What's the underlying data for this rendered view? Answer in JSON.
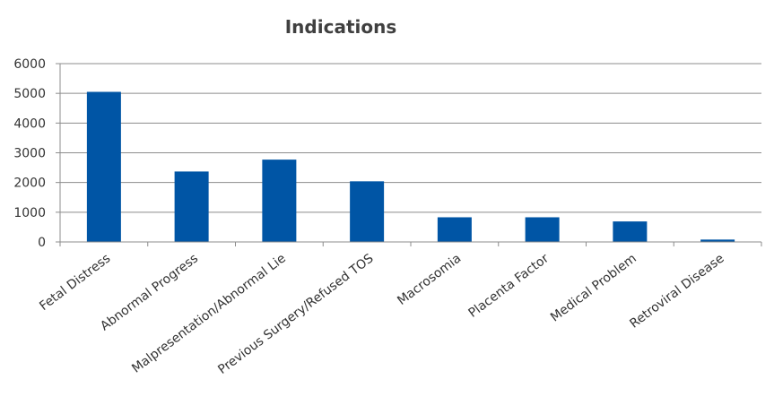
{
  "chart_data": {
    "type": "bar",
    "title": "Indications",
    "categories": [
      "Fetal Distress",
      "Abnormal Progress",
      "Malpresentation/Abnormal Lie",
      "Previous Surgery/Refused TOS",
      "Macrosomia",
      "Placenta Factor",
      "Medical Problem",
      "Retroviral Disease"
    ],
    "values": [
      5050,
      2370,
      2770,
      2040,
      830,
      830,
      690,
      80
    ],
    "yticks": [
      "0",
      "1000",
      "2000",
      "3000",
      "4000",
      "5000",
      "6000"
    ],
    "ylim": [
      0,
      6000
    ],
    "grid": true,
    "legend": "none",
    "colors": {
      "bar": "#0055a5",
      "grid": "#8c8c8c",
      "text": "#333333",
      "title": "#404040"
    }
  }
}
